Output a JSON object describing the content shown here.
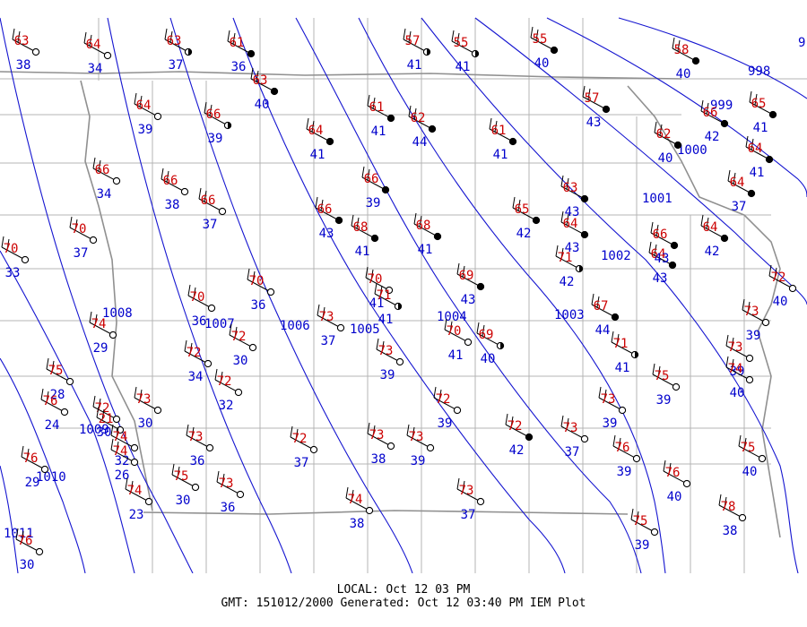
{
  "footer": {
    "local": "LOCAL: Oct 12 03 PM",
    "gmt": "GMT: 151012/2000 Generated: Oct 12 03:40 PM IEM Plot"
  },
  "colors": {
    "temperature": "#cc0000",
    "dewpoint": "#0000cc",
    "isobar": "#1515d0",
    "boundary": "#b4b4b4",
    "state_line": "#909090",
    "station": "#000000"
  },
  "isobar_labels": [
    "998",
    "999",
    "1000",
    "1001",
    "1002",
    "1003",
    "1004",
    "1005",
    "1006",
    "1007",
    "1008",
    "1009",
    "1010",
    "1011",
    "9"
  ],
  "stations": [
    {
      "t": "63",
      "d": "38"
    },
    {
      "t": "64",
      "d": "34"
    },
    {
      "t": "63",
      "d": "37"
    },
    {
      "t": "61",
      "d": "36"
    },
    {
      "t": "63",
      "d": "40"
    },
    {
      "t": "57",
      "d": "41"
    },
    {
      "t": "55",
      "d": "41"
    },
    {
      "t": "55",
      "d": "40"
    },
    {
      "t": "58",
      "d": "40"
    },
    {
      "t": "64",
      "d": "39"
    },
    {
      "t": "66",
      "d": "39"
    },
    {
      "t": "64",
      "d": "41"
    },
    {
      "t": "61",
      "d": "41"
    },
    {
      "t": "62",
      "d": "44"
    },
    {
      "t": "61",
      "d": "41"
    },
    {
      "t": "57",
      "d": "43"
    },
    {
      "t": "66",
      "d": "42"
    },
    {
      "t": "65",
      "d": "41"
    },
    {
      "t": "62",
      "d": "40"
    },
    {
      "t": "64",
      "d": "41"
    },
    {
      "t": "66",
      "d": "34"
    },
    {
      "t": "66",
      "d": "38"
    },
    {
      "t": "66",
      "d": "37"
    },
    {
      "t": "66",
      "d": "39"
    },
    {
      "t": "64",
      "d": "37"
    },
    {
      "t": "63",
      "d": "43"
    },
    {
      "t": "64",
      "d": "43"
    },
    {
      "t": "66",
      "d": "43"
    },
    {
      "t": "68",
      "d": "41"
    },
    {
      "t": "68",
      "d": "41"
    },
    {
      "t": "65",
      "d": "42"
    },
    {
      "t": "64",
      "d": "43"
    },
    {
      "t": "64",
      "d": "42"
    },
    {
      "t": "70",
      "d": "37"
    },
    {
      "t": "70",
      "d": "33"
    },
    {
      "t": "71",
      "d": "42"
    },
    {
      "t": "66",
      "d": "43"
    },
    {
      "t": "69",
      "d": "43"
    },
    {
      "t": "70",
      "d": "36"
    },
    {
      "t": "70",
      "d": "36"
    },
    {
      "t": "70",
      "d": "41"
    },
    {
      "t": "71",
      "d": "41"
    },
    {
      "t": "72",
      "d": "40"
    },
    {
      "t": "67",
      "d": "44"
    },
    {
      "t": "73",
      "d": "37"
    },
    {
      "t": "74",
      "d": "29"
    },
    {
      "t": "70",
      "d": "41"
    },
    {
      "t": "69",
      "d": "40"
    },
    {
      "t": "71",
      "d": "41"
    },
    {
      "t": "73",
      "d": "39"
    },
    {
      "t": "72",
      "d": "34"
    },
    {
      "t": "72",
      "d": "30"
    },
    {
      "t": "73",
      "d": "39"
    },
    {
      "t": "73",
      "d": "39"
    },
    {
      "t": "74",
      "d": "40"
    },
    {
      "t": "75",
      "d": "28"
    },
    {
      "t": "72",
      "d": "32"
    },
    {
      "t": "72",
      "d": "39"
    },
    {
      "t": "73",
      "d": "39"
    },
    {
      "t": "75",
      "d": "39"
    },
    {
      "t": "72",
      "d": "30"
    },
    {
      "t": "73",
      "d": "30"
    },
    {
      "t": "76",
      "d": "24"
    },
    {
      "t": "21",
      "d": ""
    },
    {
      "t": "74",
      "d": "32"
    },
    {
      "t": "72",
      "d": "42"
    },
    {
      "t": "73",
      "d": "37"
    },
    {
      "t": "74",
      "d": "26"
    },
    {
      "t": "73",
      "d": "36"
    },
    {
      "t": "72",
      "d": "37"
    },
    {
      "t": "73",
      "d": "38"
    },
    {
      "t": "73",
      "d": "39"
    },
    {
      "t": "76",
      "d": "39"
    },
    {
      "t": "75",
      "d": "40"
    },
    {
      "t": "76",
      "d": "29"
    },
    {
      "t": "75",
      "d": "30"
    },
    {
      "t": "73",
      "d": "36"
    },
    {
      "t": "76",
      "d": "40"
    },
    {
      "t": "74",
      "d": "23"
    },
    {
      "t": "73",
      "d": "37"
    },
    {
      "t": "74",
      "d": "38"
    },
    {
      "t": "78",
      "d": "38"
    },
    {
      "t": "75",
      "d": "39"
    },
    {
      "t": "76",
      "d": "30"
    }
  ]
}
